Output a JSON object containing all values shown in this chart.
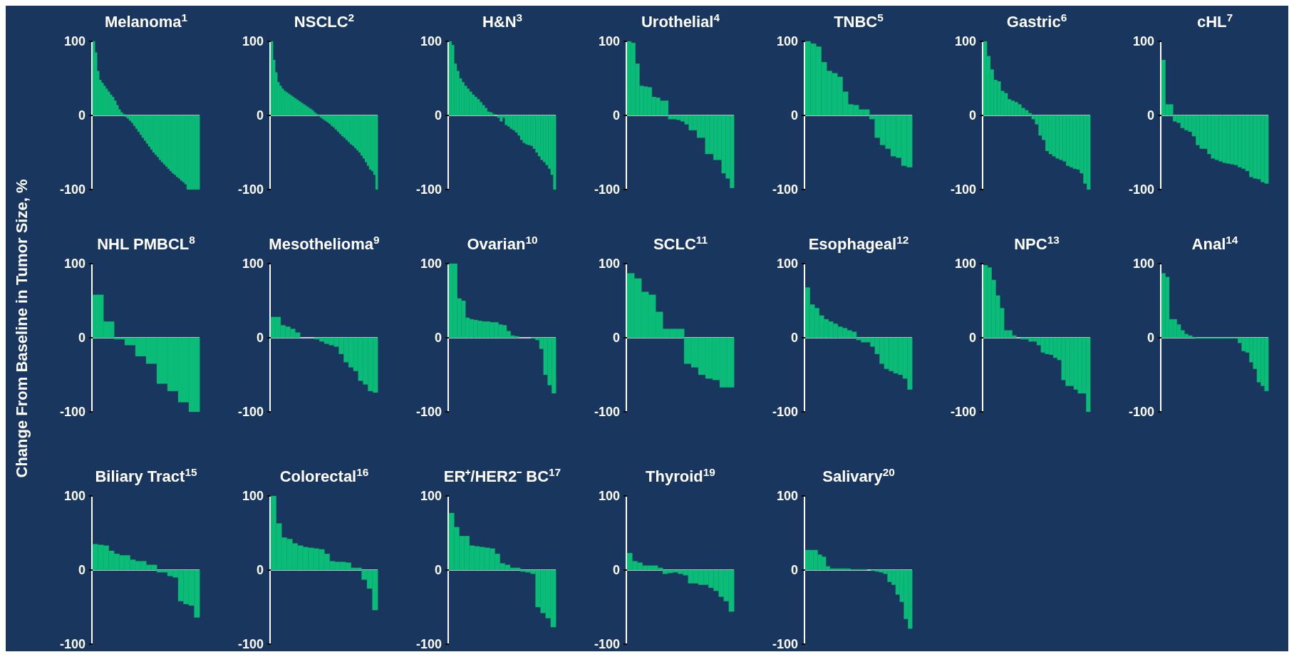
{
  "chart_data": [
    {
      "type": "bar",
      "title": "Melanoma$^{1}$",
      "categories": [
        null,
        null,
        null,
        null,
        null,
        null,
        null,
        null,
        null,
        null,
        null,
        null,
        null,
        null,
        null,
        null,
        null,
        null,
        null,
        null,
        null,
        null,
        null,
        null,
        null,
        null,
        null,
        null,
        null,
        null,
        null,
        null,
        null,
        null,
        null,
        null,
        null,
        null,
        null,
        null,
        null,
        null,
        null,
        null,
        null,
        null,
        null,
        null,
        null,
        null
      ],
      "values": [
        100,
        85,
        60,
        48,
        44,
        40,
        36,
        32,
        28,
        25,
        20,
        14,
        8,
        4,
        2,
        -2,
        -4,
        -7,
        -10,
        -14,
        -18,
        -22,
        -26,
        -30,
        -34,
        -38,
        -42,
        -46,
        -50,
        -53,
        -56,
        -60,
        -63,
        -66,
        -69,
        -72,
        -75,
        -78,
        -80,
        -83,
        -85,
        -88,
        -90,
        -93,
        -100,
        -100,
        -100,
        -100,
        -100,
        -100
      ],
      "color": "#0bbb78",
      "ylim": [
        -100,
        100
      ],
      "yticks": [
        -100,
        0,
        100
      ]
    },
    {
      "type": "bar",
      "title": "NSCLC$^{2}$",
      "categories": [
        null,
        null,
        null,
        null,
        null,
        null,
        null,
        null,
        null,
        null,
        null,
        null,
        null,
        null,
        null,
        null,
        null,
        null,
        null,
        null,
        null,
        null,
        null,
        null,
        null,
        null,
        null,
        null,
        null,
        null,
        null,
        null,
        null,
        null,
        null,
        null,
        null,
        null,
        null,
        null,
        null,
        null,
        null,
        null,
        null,
        null,
        null,
        null,
        null,
        null
      ],
      "values": [
        100,
        75,
        58,
        45,
        40,
        36,
        33,
        31,
        29,
        27,
        25,
        23,
        21,
        19,
        17,
        15,
        13,
        11,
        9,
        7,
        4,
        2,
        -1,
        -3,
        -5,
        -7,
        -9,
        -11,
        -14,
        -16,
        -19,
        -22,
        -25,
        -28,
        -30,
        -33,
        -36,
        -39,
        -41,
        -44,
        -47,
        -50,
        -54,
        -58,
        -63,
        -68,
        -73,
        -75,
        -80,
        -100
      ],
      "color": "#0bbb78",
      "ylim": [
        -100,
        100
      ],
      "yticks": [
        -100,
        0,
        100
      ]
    },
    {
      "type": "bar",
      "title": "H&N$^{3}$",
      "categories": [
        null,
        null,
        null,
        null,
        null,
        null,
        null,
        null,
        null,
        null,
        null,
        null,
        null,
        null,
        null,
        null,
        null,
        null,
        null,
        null,
        null,
        null,
        null,
        null,
        null,
        null,
        null,
        null,
        null,
        null,
        null,
        null,
        null,
        null,
        null,
        null,
        null,
        null,
        null,
        null,
        null,
        null
      ],
      "values": [
        100,
        95,
        70,
        60,
        50,
        45,
        40,
        36,
        32,
        28,
        25,
        22,
        18,
        14,
        10,
        5,
        4,
        2,
        0,
        -3,
        -8,
        -3,
        -13,
        -15,
        -18,
        -20,
        -23,
        -27,
        -33,
        -37,
        -39,
        -40,
        -41,
        -45,
        -50,
        -55,
        -60,
        -63,
        -67,
        -72,
        -80,
        -100
      ],
      "color": "#0bbb78",
      "ylim": [
        -100,
        100
      ],
      "yticks": [
        -100,
        0,
        100
      ]
    },
    {
      "type": "bar",
      "title": "Urothelial$^{4}$",
      "categories": [
        null,
        null,
        null,
        null,
        null,
        null,
        null,
        null,
        null,
        null,
        null,
        null,
        null,
        null,
        null,
        null,
        null,
        null,
        null,
        null,
        null,
        null,
        null,
        null,
        null,
        null
      ],
      "values": [
        100,
        98,
        70,
        40,
        39,
        38,
        25,
        24,
        20,
        20,
        -5,
        -5,
        -6,
        -8,
        -12,
        -20,
        -20,
        -30,
        -30,
        -52,
        -52,
        -60,
        -60,
        -78,
        -85,
        -98
      ],
      "color": "#0bbb78",
      "ylim": [
        -100,
        100
      ],
      "yticks": [
        -100,
        0,
        100
      ]
    },
    {
      "type": "bar",
      "title": "TNBC$^{5}$",
      "categories": [
        null,
        null,
        null,
        null,
        null,
        null,
        null,
        null,
        null,
        null,
        null,
        null,
        null,
        null,
        null,
        null,
        null,
        null,
        null,
        null
      ],
      "values": [
        100,
        97,
        93,
        72,
        60,
        57,
        52,
        32,
        15,
        14,
        8,
        8,
        -5,
        -30,
        -40,
        -45,
        -55,
        -57,
        -68,
        -70
      ],
      "color": "#0bbb78",
      "ylim": [
        -100,
        100
      ],
      "yticks": [
        -100,
        0,
        100
      ]
    },
    {
      "type": "bar",
      "title": "Gastric$^{6}$",
      "categories": [
        null,
        null,
        null,
        null,
        null,
        null,
        null,
        null,
        null,
        null,
        null,
        null,
        null,
        null,
        null,
        null,
        null,
        null,
        null,
        null,
        null,
        null,
        null,
        null,
        null,
        null,
        null,
        null,
        null,
        null,
        null
      ],
      "values": [
        100,
        80,
        62,
        48,
        46,
        33,
        30,
        22,
        20,
        18,
        15,
        10,
        7,
        3,
        -5,
        -12,
        -27,
        -33,
        -48,
        -52,
        -55,
        -58,
        -60,
        -62,
        -68,
        -70,
        -72,
        -73,
        -78,
        -92,
        -100
      ],
      "color": "#0bbb78",
      "ylim": [
        -100,
        100
      ],
      "yticks": [
        -100,
        0,
        100
      ]
    },
    {
      "type": "bar",
      "title": "cHL$^{7}$",
      "categories": [
        null,
        null,
        null,
        null,
        null,
        null,
        null,
        null,
        null,
        null,
        null,
        null,
        null,
        null,
        null,
        null,
        null,
        null,
        null,
        null,
        null,
        null,
        null,
        null,
        null,
        null,
        null,
        null
      ],
      "values": [
        75,
        15,
        15,
        -8,
        -10,
        -17,
        -20,
        -22,
        -28,
        -40,
        -45,
        -45,
        -52,
        -58,
        -60,
        -62,
        -64,
        -65,
        -66,
        -67,
        -70,
        -72,
        -75,
        -83,
        -85,
        -86,
        -90,
        -92
      ],
      "color": "#0bbb78",
      "ylim": [
        -100,
        100
      ],
      "yticks": [
        -100,
        0,
        100
      ]
    },
    {
      "type": "bar",
      "title": "NHL PMBCL$^{8}$",
      "ylabel": "Change From Baseline in Tumor Size, %",
      "categories": [
        null,
        null,
        null,
        null,
        null,
        null,
        null,
        null,
        null,
        null
      ],
      "values": [
        58,
        22,
        -2,
        -10,
        -25,
        -35,
        -62,
        -72,
        -87,
        -100
      ],
      "color": "#0bbb78",
      "ylim": [
        -100,
        100
      ],
      "yticks": [
        -100,
        0,
        100
      ]
    },
    {
      "type": "bar",
      "title": "Mesothelioma$^{9}$",
      "categories": [
        null,
        null,
        null,
        null,
        null,
        null,
        null,
        null,
        null,
        null,
        null,
        null,
        null,
        null,
        null,
        null,
        null,
        null,
        null,
        null,
        null,
        null
      ],
      "values": [
        28,
        28,
        17,
        15,
        12,
        7,
        0,
        0,
        0,
        -2,
        -5,
        -8,
        -10,
        -12,
        -22,
        -33,
        -40,
        -45,
        -58,
        -63,
        -72,
        -74
      ],
      "color": "#0bbb78",
      "ylim": [
        -100,
        100
      ],
      "yticks": [
        -100,
        0,
        100
      ]
    },
    {
      "type": "bar",
      "title": "Ovarian$^{10}$",
      "categories": [
        null,
        null,
        null,
        null,
        null,
        null,
        null,
        null,
        null,
        null,
        null,
        null,
        null,
        null,
        null,
        null,
        null,
        null,
        null,
        null,
        null,
        null,
        null,
        null,
        null,
        null
      ],
      "values": [
        100,
        100,
        53,
        50,
        27,
        25,
        24,
        23,
        22,
        22,
        21,
        21,
        18,
        17,
        9,
        3,
        2,
        0,
        0,
        0,
        -1,
        -3,
        -15,
        -50,
        -64,
        -75
      ],
      "color": "#0bbb78",
      "ylim": [
        -100,
        100
      ],
      "yticks": [
        -100,
        0,
        100
      ]
    },
    {
      "type": "bar",
      "title": "SCLC$^{11}$",
      "categories": [
        null,
        null,
        null,
        null,
        null,
        null,
        null,
        null,
        null,
        null,
        null,
        null,
        null,
        null,
        null
      ],
      "values": [
        87,
        80,
        62,
        58,
        35,
        12,
        12,
        12,
        -35,
        -40,
        -50,
        -55,
        -57,
        -67,
        -67
      ],
      "color": "#0bbb78",
      "ylim": [
        -100,
        100
      ],
      "yticks": [
        -100,
        0,
        100
      ]
    },
    {
      "type": "bar",
      "title": "Esophageal$^{12}$",
      "categories": [
        null,
        null,
        null,
        null,
        null,
        null,
        null,
        null,
        null,
        null,
        null,
        null,
        null,
        null,
        null,
        null,
        null,
        null,
        null,
        null,
        null,
        null,
        null
      ],
      "values": [
        68,
        45,
        40,
        30,
        25,
        22,
        19,
        15,
        13,
        10,
        8,
        -3,
        -6,
        -6,
        -12,
        -22,
        -35,
        -42,
        -45,
        -48,
        -50,
        -55,
        -70
      ],
      "color": "#0bbb78",
      "ylim": [
        -100,
        100
      ],
      "yticks": [
        -100,
        0,
        100
      ]
    },
    {
      "type": "bar",
      "title": "NPC$^{13}$",
      "categories": [
        null,
        null,
        null,
        null,
        null,
        null,
        null,
        null,
        null,
        null,
        null,
        null,
        null,
        null,
        null,
        null,
        null,
        null,
        null,
        null,
        null,
        null,
        null,
        null,
        null,
        null
      ],
      "values": [
        98,
        95,
        78,
        57,
        40,
        10,
        10,
        3,
        0,
        -2,
        -2,
        -5,
        -5,
        -10,
        -20,
        -22,
        -23,
        -27,
        -30,
        -57,
        -65,
        -65,
        -70,
        -75,
        -75,
        -100
      ],
      "color": "#0bbb78",
      "ylim": [
        -100,
        100
      ],
      "yticks": [
        -100,
        0,
        100
      ]
    },
    {
      "type": "bar",
      "title": "Anal$^{14}$",
      "categories": [
        null,
        null,
        null,
        null,
        null,
        null,
        null,
        null,
        null,
        null,
        null,
        null,
        null,
        null,
        null,
        null,
        null,
        null,
        null,
        null,
        null,
        null,
        null,
        null,
        null,
        null,
        null,
        null
      ],
      "values": [
        87,
        82,
        25,
        25,
        18,
        10,
        5,
        3,
        1,
        -1,
        -1,
        -1,
        -1,
        -1,
        -1,
        -1,
        -1,
        -1,
        -1,
        -1,
        -7,
        -18,
        -20,
        -33,
        -42,
        -60,
        -65,
        -72
      ],
      "color": "#0bbb78",
      "ylim": [
        -100,
        100
      ],
      "yticks": [
        -100,
        0,
        100
      ]
    },
    {
      "type": "bar",
      "title": "Biliary Tract$^{15}$",
      "categories": [
        null,
        null,
        null,
        null,
        null,
        null,
        null,
        null,
        null,
        null,
        null,
        null,
        null,
        null,
        null,
        null,
        null,
        null,
        null,
        null
      ],
      "values": [
        35,
        34,
        33,
        26,
        22,
        20,
        20,
        14,
        12,
        12,
        7,
        7,
        -3,
        -3,
        -8,
        -10,
        -42,
        -46,
        -48,
        -64
      ],
      "color": "#0bbb78",
      "ylim": [
        -100,
        100
      ],
      "yticks": [
        -100,
        0,
        100
      ]
    },
    {
      "type": "bar",
      "title": "Colorectal$^{16}$",
      "categories": [
        null,
        null,
        null,
        null,
        null,
        null,
        null,
        null,
        null,
        null,
        null,
        null,
        null,
        null,
        null,
        null,
        null,
        null,
        null,
        null
      ],
      "values": [
        100,
        63,
        44,
        42,
        36,
        33,
        31,
        30,
        29,
        28,
        22,
        12,
        11,
        11,
        10,
        3,
        3,
        -13,
        -25,
        -54
      ],
      "color": "#0bbb78",
      "ylim": [
        -100,
        100
      ],
      "yticks": [
        -100,
        0,
        100
      ]
    },
    {
      "type": "bar",
      "title": "ER⁺/HER2⁻ BC$^{17}$",
      "categories": [
        null,
        null,
        null,
        null,
        null,
        null,
        null,
        null,
        null,
        null,
        null,
        null,
        null,
        null,
        null,
        null,
        null,
        null,
        null,
        null,
        null
      ],
      "values": [
        77,
        58,
        46,
        46,
        33,
        32,
        31,
        30,
        29,
        22,
        9,
        7,
        3,
        3,
        -2,
        -3,
        -5,
        -50,
        -58,
        -65,
        -77
      ],
      "color": "#0bbb78",
      "ylim": [
        -100,
        100
      ],
      "yticks": [
        -100,
        0,
        100
      ]
    },
    {
      "type": "bar",
      "title": "Thyroid$^{19}$",
      "categories": [
        null,
        null,
        null,
        null,
        null,
        null,
        null,
        null,
        null,
        null,
        null,
        null,
        null,
        null,
        null,
        null,
        null,
        null,
        null,
        null,
        null
      ],
      "values": [
        23,
        12,
        10,
        6,
        6,
        6,
        3,
        -5,
        -4,
        -3,
        -5,
        -7,
        -18,
        -18,
        -20,
        -20,
        -24,
        -28,
        -36,
        -42,
        -56
      ],
      "color": "#0bbb78",
      "ylim": [
        -100,
        100
      ],
      "yticks": [
        -100,
        0,
        100
      ]
    },
    {
      "type": "bar",
      "title": "Salivary$^{20}$",
      "categories": [
        null,
        null,
        null,
        null,
        null,
        null,
        null,
        null,
        null,
        null,
        null,
        null,
        null,
        null,
        null,
        null,
        null,
        null,
        null,
        null,
        null,
        null,
        null,
        null,
        null,
        null
      ],
      "values": [
        27,
        27,
        27,
        21,
        18,
        5,
        2,
        2,
        2,
        2,
        2,
        1,
        1,
        1,
        1,
        0,
        -1,
        -2,
        -3,
        -5,
        -16,
        -20,
        -33,
        -43,
        -66,
        -79
      ],
      "color": "#0bbb78",
      "ylim": [
        -100,
        100
      ],
      "yticks": [
        -100,
        0,
        100
      ]
    }
  ]
}
